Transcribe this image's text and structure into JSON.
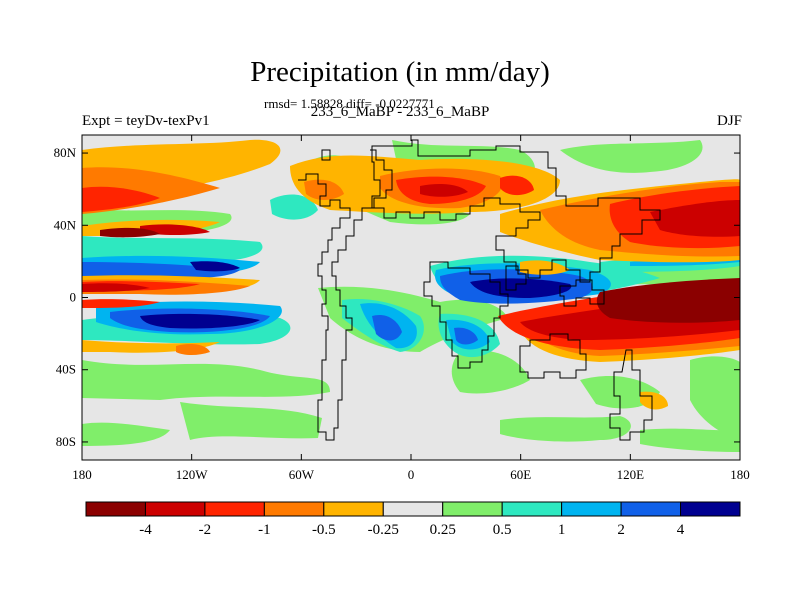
{
  "title": "Precipitation (in mm/day)",
  "stats": "rmsd= 1.58828 diff= -0.0227771",
  "subtitle": "233_6_MaBP - 233_6_MaBP",
  "expt_label": "Expt = teyDv-texPv1",
  "season": "DJF",
  "map": {
    "background_color": "#e6e6e6",
    "x_ticks": [
      "180",
      "120W",
      "60W",
      "0",
      "60E",
      "120E",
      "180"
    ],
    "y_ticks": [
      "80N",
      "40N",
      "0",
      "40S",
      "80S"
    ]
  },
  "colorbar": {
    "colors": [
      "#8b0000",
      "#cc0000",
      "#ff2400",
      "#ff7a00",
      "#ffb400",
      "#e6e6e6",
      "#80ee6a",
      "#2ee8c0",
      "#00b4f0",
      "#1060e8",
      "#000090"
    ],
    "labels": [
      "-4",
      "-2",
      "-1",
      "-0.5",
      "-0.25",
      "0.25",
      "0.5",
      "1",
      "2",
      "4"
    ]
  }
}
